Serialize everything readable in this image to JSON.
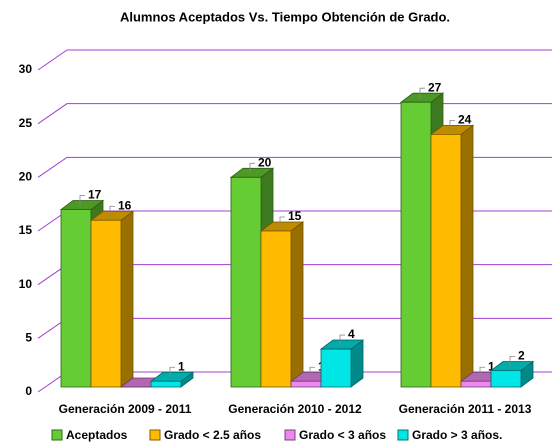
{
  "chart_data": {
    "type": "bar3d",
    "title": "Alumnos Aceptados Vs. Tiempo Obtención de Grado.",
    "categories": [
      "Generación 2009 - 2011",
      "Generación 2010 - 2012",
      "Generación 2011 - 2013"
    ],
    "series": [
      {
        "name": "Aceptados",
        "color": "#66cc33",
        "values": [
          17,
          20,
          27
        ]
      },
      {
        "name": "Grado < 2.5 años",
        "color": "#ffbb00",
        "values": [
          16,
          15,
          24
        ]
      },
      {
        "name": "Grado < 3 años",
        "color": "#ee88ee",
        "values": [
          0,
          1,
          1
        ]
      },
      {
        "name": "Grado > 3 años.",
        "color": "#00e5e5",
        "values": [
          1,
          4,
          2
        ]
      }
    ],
    "ylim": [
      0,
      30
    ],
    "yticks": [
      0,
      5,
      10,
      15,
      20,
      25,
      30
    ],
    "grid": true,
    "grid_color": "#a040d0",
    "legend": "bottom"
  }
}
